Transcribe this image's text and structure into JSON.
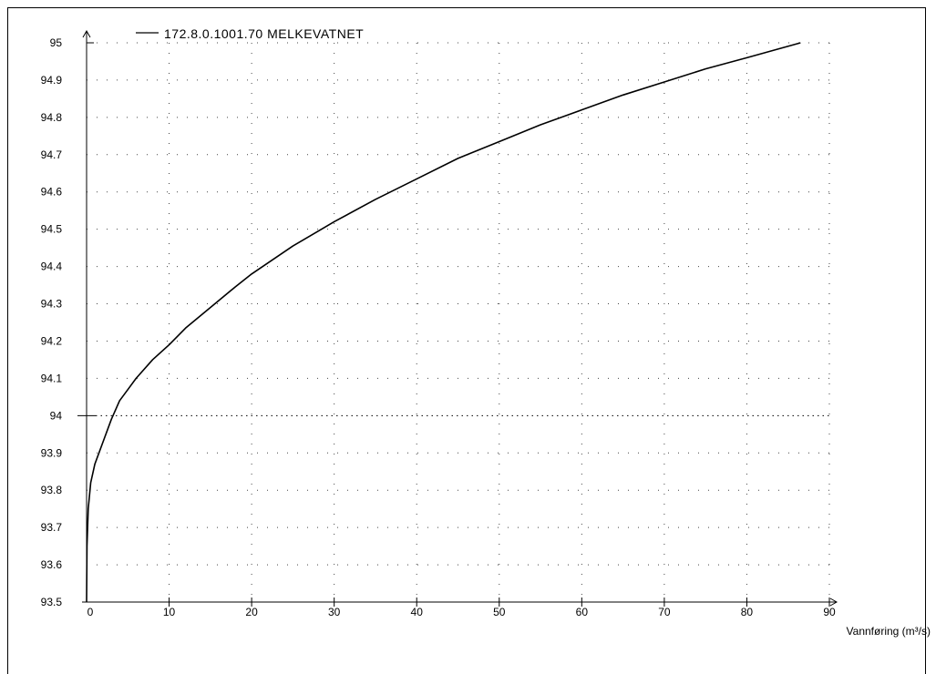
{
  "chart_data": {
    "type": "line",
    "title": "",
    "xlabel": "Vannføring (m³/s)",
    "ylabel": "",
    "xlim": [
      0,
      90
    ],
    "ylim": [
      93.5,
      95
    ],
    "grid": true,
    "legend_placement": "top-left",
    "x_ticks": [
      "0",
      "10",
      "20",
      "30",
      "40",
      "50",
      "60",
      "70",
      "80",
      "90"
    ],
    "y_ticks": [
      "93.5",
      "93.6",
      "93.7",
      "93.8",
      "93.9",
      "94",
      "94.1",
      "94.2",
      "94.3",
      "94.4",
      "94.5",
      "94.6",
      "94.7",
      "94.8",
      "94.9",
      "95"
    ],
    "series": [
      {
        "name": "172.8.0.1001.70 MELKEVATNET",
        "color": "#000000",
        "x": [
          0,
          0.05,
          0.2,
          0.5,
          1,
          2,
          3,
          4,
          5,
          6,
          8,
          10,
          12,
          15,
          18,
          20,
          25,
          30,
          35,
          40,
          45,
          50,
          55,
          60,
          65,
          70,
          75,
          80,
          86.5
        ],
        "y": [
          93.5,
          93.65,
          93.75,
          93.82,
          93.87,
          93.93,
          93.99,
          94.04,
          94.07,
          94.1,
          94.15,
          94.19,
          94.235,
          94.29,
          94.345,
          94.38,
          94.455,
          94.52,
          94.58,
          94.635,
          94.69,
          94.735,
          94.78,
          94.82,
          94.86,
          94.895,
          94.93,
          94.96,
          95.0
        ]
      }
    ]
  }
}
